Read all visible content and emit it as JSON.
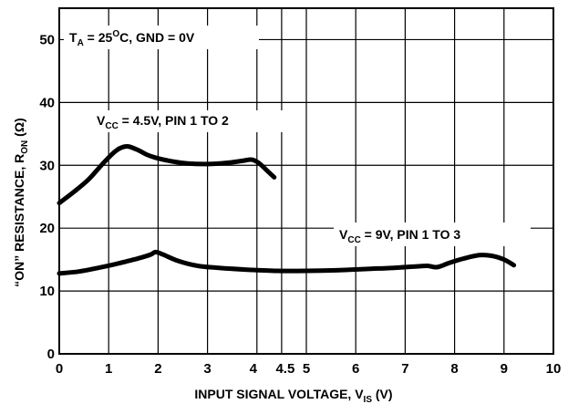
{
  "chart_data": {
    "type": "line",
    "xlabel": {
      "main": "INPUT SIGNAL VOLTAGE, V",
      "sub": "IS",
      "unit": " (V)"
    },
    "ylabel": {
      "main": "“ON” RESISTANCE, R",
      "sub": "ON",
      "unit": " (Ω)"
    },
    "xlim": [
      0,
      10
    ],
    "ylim": [
      0,
      55
    ],
    "x_ticks": [
      {
        "value": 0,
        "label": "0"
      },
      {
        "value": 1,
        "label": "1"
      },
      {
        "value": 2,
        "label": "2"
      },
      {
        "value": 3,
        "label": "3"
      },
      {
        "value": 4,
        "label": "4"
      },
      {
        "value": 4.5,
        "label": "4.5"
      },
      {
        "value": 5,
        "label": "5"
      },
      {
        "value": 6,
        "label": "6"
      },
      {
        "value": 7,
        "label": "7"
      },
      {
        "value": 8,
        "label": "8"
      },
      {
        "value": 9,
        "label": "9"
      },
      {
        "value": 10,
        "label": "10"
      }
    ],
    "y_ticks": [
      {
        "value": 0,
        "label": "0"
      },
      {
        "value": 10,
        "label": "10"
      },
      {
        "value": 20,
        "label": "20"
      },
      {
        "value": 30,
        "label": "30"
      },
      {
        "value": 40,
        "label": "40"
      },
      {
        "value": 50,
        "label": "50"
      }
    ],
    "grid": true,
    "annotations": {
      "condition": {
        "t": "T",
        "t_sub": "A",
        "rest1": " = 25",
        "sup": "O",
        "rest2": "C, GND = 0V"
      },
      "series1": {
        "v": "V",
        "v_sub": "CC",
        "rest": " = 4.5V, PIN 1 TO 2"
      },
      "series2": {
        "v": "V",
        "v_sub": "CC",
        "rest": " = 9V, PIN 1 TO 3"
      }
    },
    "series": [
      {
        "x": [
          0,
          0.3,
          0.6,
          0.85,
          1.1,
          1.25,
          1.4,
          1.6,
          1.8,
          2.0,
          2.3,
          2.6,
          3.0,
          3.4,
          3.7,
          3.9,
          4.05,
          4.2,
          4.35
        ],
        "y": [
          24,
          25.8,
          27.8,
          30,
          32,
          32.8,
          33,
          32.4,
          31.6,
          31.1,
          30.6,
          30.3,
          30.2,
          30.4,
          30.7,
          30.9,
          30.3,
          29.2,
          28.1
        ]
      },
      {
        "x": [
          0,
          0.4,
          0.8,
          1.2,
          1.6,
          1.85,
          1.95,
          2.1,
          2.4,
          2.8,
          3.2,
          3.8,
          4.4,
          5.0,
          5.6,
          6.2,
          6.8,
          7.2,
          7.45,
          7.65,
          7.9,
          8.2,
          8.5,
          8.75,
          9.0,
          9.2
        ],
        "y": [
          12.8,
          13.1,
          13.7,
          14.4,
          15.2,
          15.8,
          16.2,
          15.8,
          14.8,
          14.0,
          13.7,
          13.4,
          13.2,
          13.2,
          13.3,
          13.5,
          13.7,
          13.9,
          14.0,
          13.8,
          14.5,
          15.2,
          15.7,
          15.6,
          15.0,
          14.1
        ]
      }
    ]
  }
}
